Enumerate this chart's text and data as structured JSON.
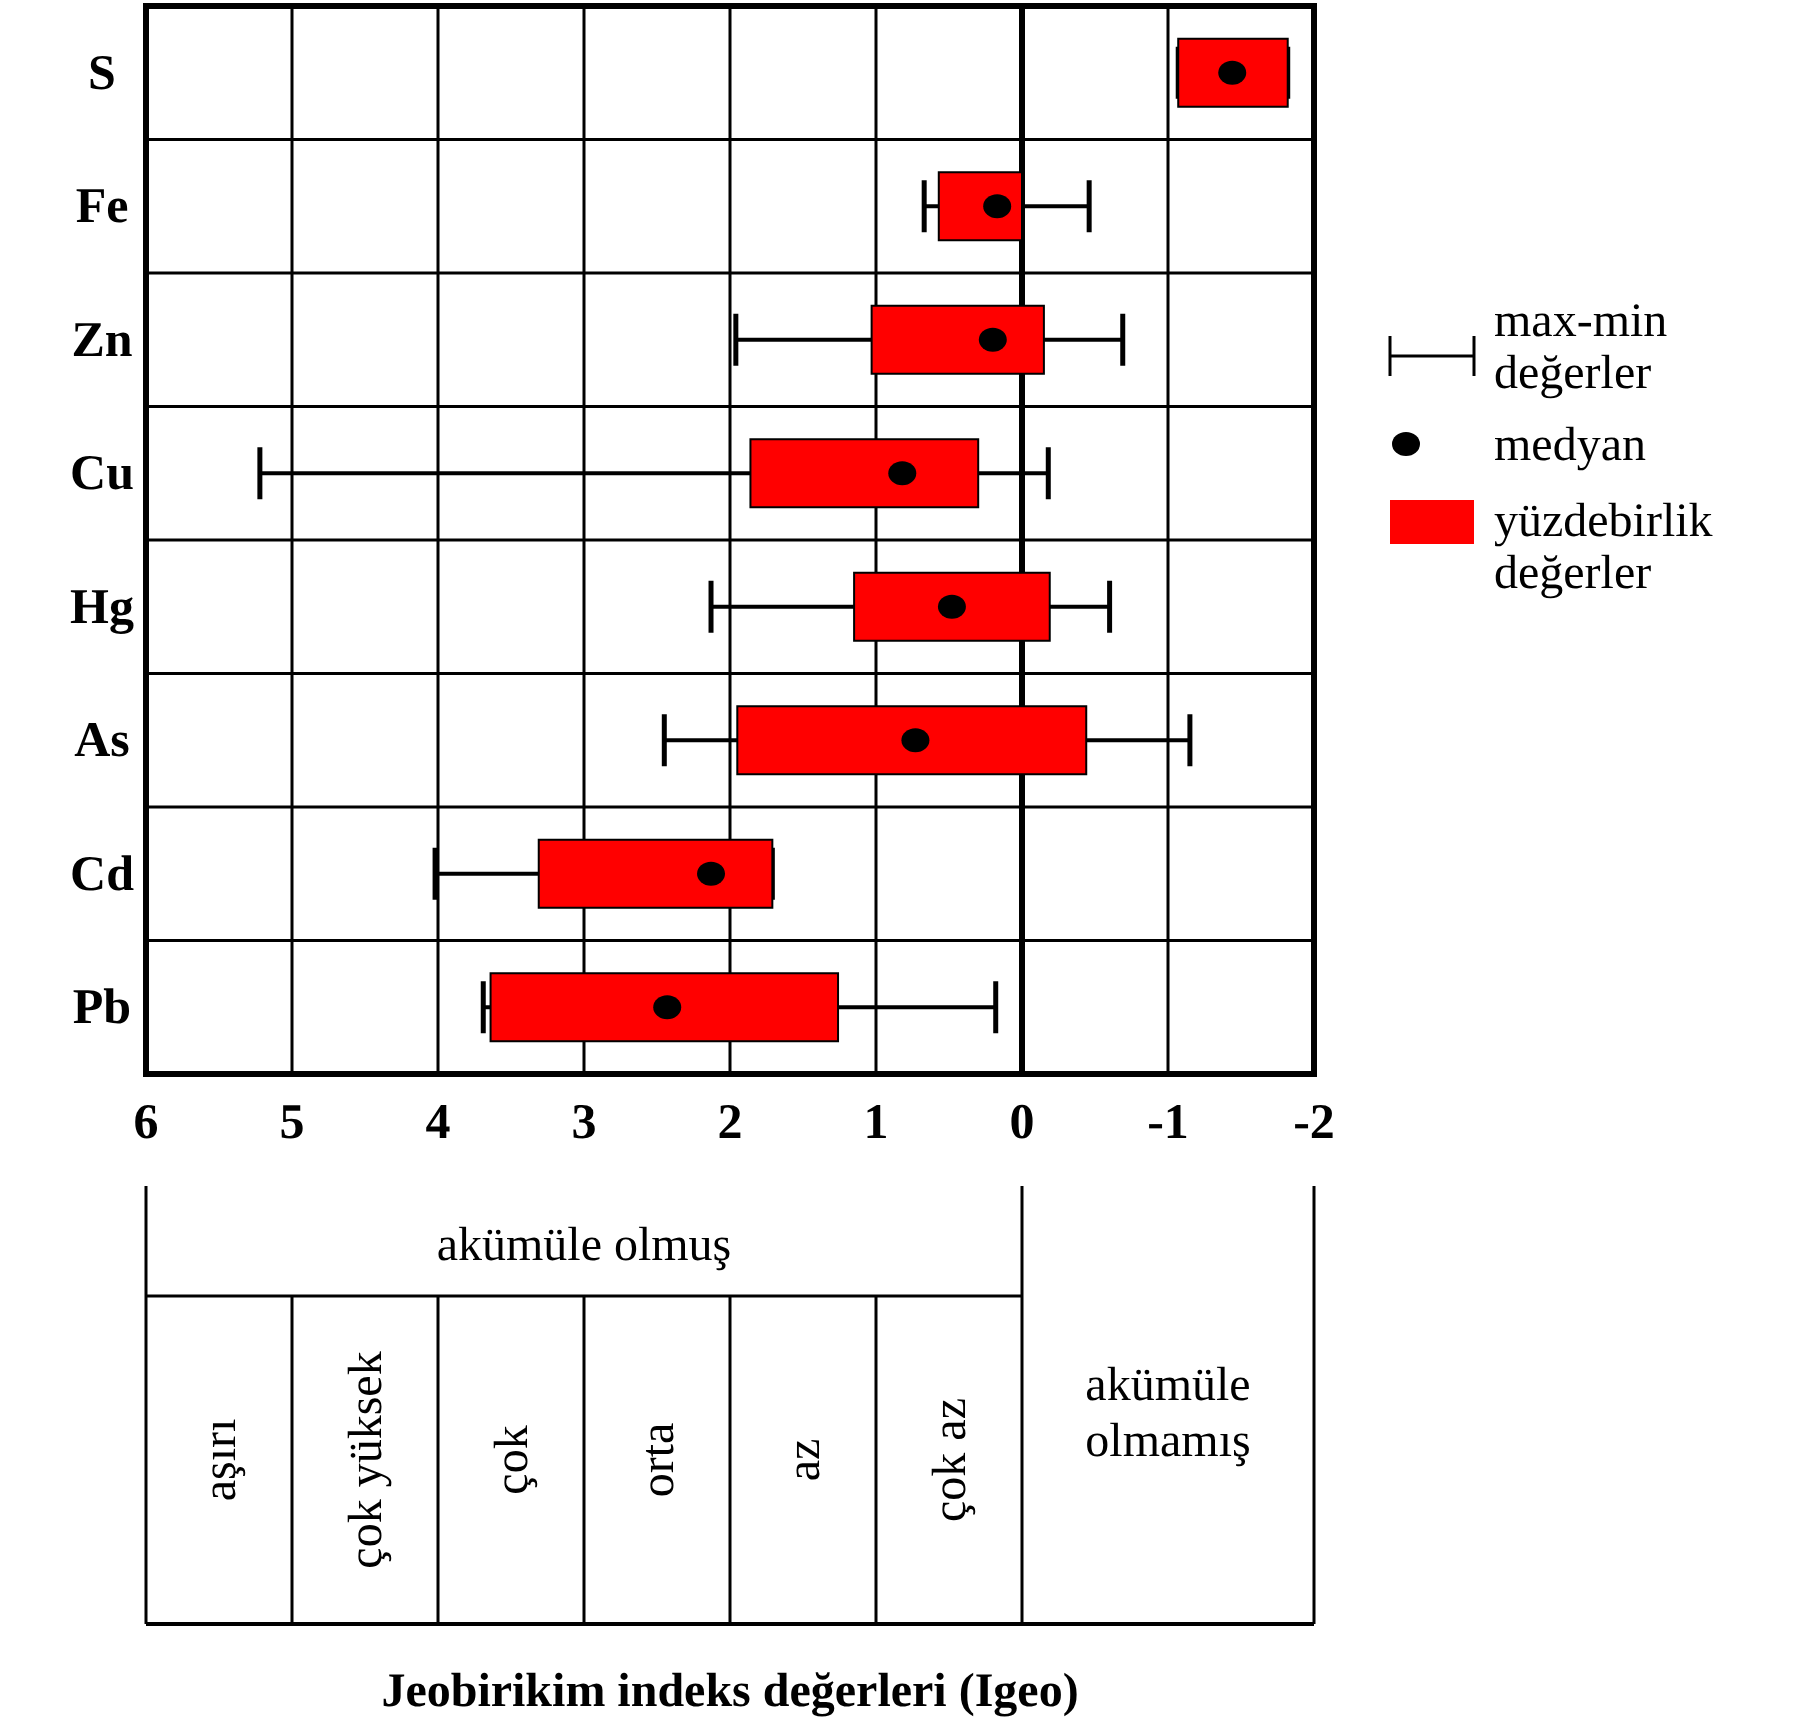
{
  "chart_data": {
    "type": "box",
    "orientation": "horizontal",
    "categories": [
      "S",
      "Fe",
      "Zn",
      "Cu",
      "Hg",
      "As",
      "Cd",
      "Pb"
    ],
    "series": [
      {
        "name": "yüzdebirlik değerler",
        "color": "#ff0000",
        "boxes": [
          {
            "low": -1.82,
            "q1": -1.82,
            "median": -1.44,
            "q3": -1.07,
            "high": -1.07
          },
          {
            "low": -0.46,
            "q1": 0.0,
            "median": 0.17,
            "q3": 0.57,
            "high": 0.67
          },
          {
            "low": -0.69,
            "q1": -0.15,
            "median": 0.2,
            "q3": 1.03,
            "high": 1.96
          },
          {
            "low": -0.18,
            "q1": 0.3,
            "median": 0.82,
            "q3": 1.86,
            "high": 5.22
          },
          {
            "low": -0.6,
            "q1": -0.19,
            "median": 0.48,
            "q3": 1.15,
            "high": 2.13
          },
          {
            "low": -1.15,
            "q1": -0.44,
            "median": 0.73,
            "q3": 1.95,
            "high": 2.45
          },
          {
            "low": 1.71,
            "q1": 1.71,
            "median": 2.13,
            "q3": 3.31,
            "high": 4.02
          },
          {
            "low": 0.18,
            "q1": 1.26,
            "median": 2.43,
            "q3": 3.64,
            "high": 3.69
          }
        ]
      }
    ],
    "xlim": [
      6,
      -2
    ],
    "xticks": [
      6,
      5,
      4,
      3,
      2,
      1,
      0,
      -1,
      -2
    ],
    "grid": true,
    "legend": "right",
    "marker": "circle",
    "ref_lines": [
      {
        "axis": "x",
        "value": 0,
        "label": null
      }
    ],
    "annotations": [
      "akümüle olmuş",
      "aşırı",
      "çok yüksek",
      "çok",
      "orta",
      "az",
      "çok az",
      "akümüle olmamış",
      "max-min değerler",
      "medyan",
      "Jeobirikim indeks değerleri (Igeo)"
    ]
  }
}
